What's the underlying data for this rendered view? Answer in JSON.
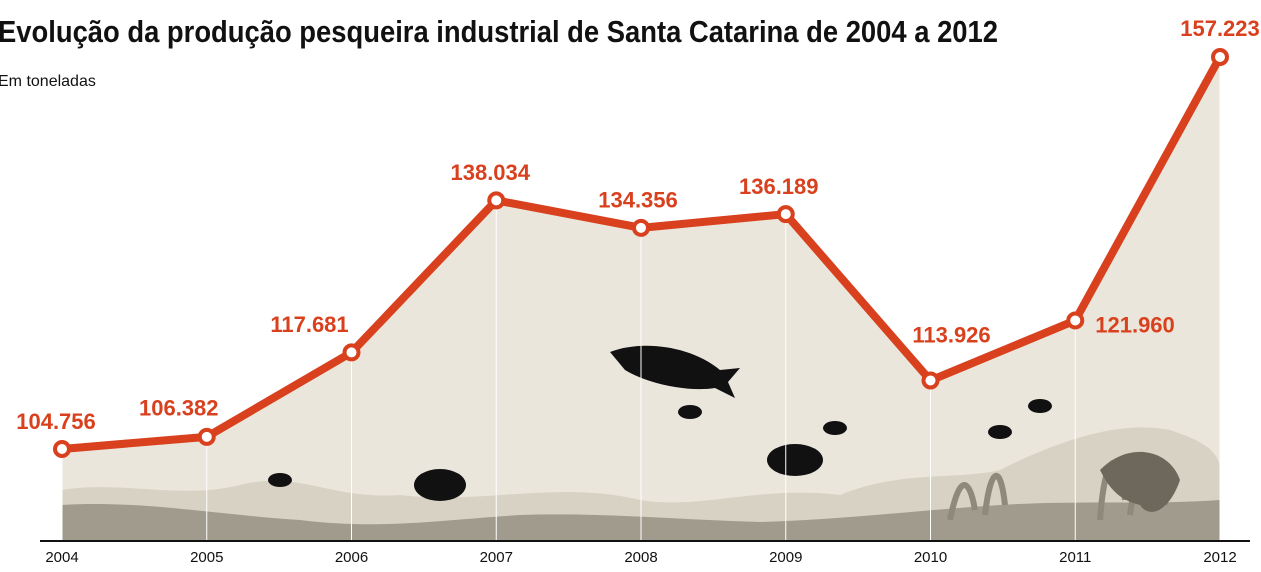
{
  "chart_data": {
    "type": "line",
    "title": "Evolução da produção pesqueira industrial de Santa Catarina de 2004 a 2012",
    "subtitle": "Em toneladas",
    "categories": [
      "2004",
      "2005",
      "2006",
      "2007",
      "2008",
      "2009",
      "2010",
      "2011",
      "2012"
    ],
    "values": [
      104756,
      106382,
      117681,
      138034,
      134356,
      136189,
      113926,
      121960,
      157223
    ],
    "value_labels": [
      "104.756",
      "106.382",
      "117.681",
      "138.034",
      "134.356",
      "136.189",
      "113.926",
      "121.960",
      "157.223"
    ],
    "color": "#d9411e",
    "ylim": [
      92440,
      164850
    ]
  }
}
